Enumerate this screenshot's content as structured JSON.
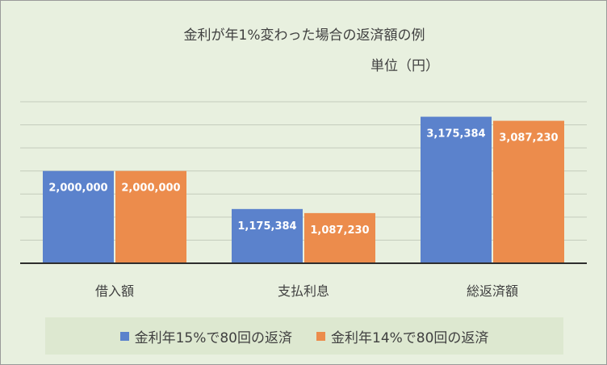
{
  "chart_data": {
    "type": "bar",
    "title": "金利が年1%変わった場合の返済額の例",
    "unit_label": "単位（円）",
    "categories": [
      "借入額",
      "支払利息",
      "総返済額"
    ],
    "series": [
      {
        "name": "金利年15%で80回の返済",
        "color": "#5b82cc",
        "values": [
          2000000,
          1175384,
          3175384
        ],
        "labels": [
          "2,000,000",
          "1,175,384",
          "3,175,384"
        ]
      },
      {
        "name": "金利年14%で80回の返済",
        "color": "#ec8c4c",
        "values": [
          2000000,
          1087230,
          3087230
        ],
        "labels": [
          "2,000,000",
          "1,087,230",
          "3,087,230"
        ]
      }
    ],
    "ylim": [
      0,
      3500000
    ],
    "grid": true,
    "legend_position": "bottom",
    "xlabel": "",
    "ylabel": ""
  }
}
